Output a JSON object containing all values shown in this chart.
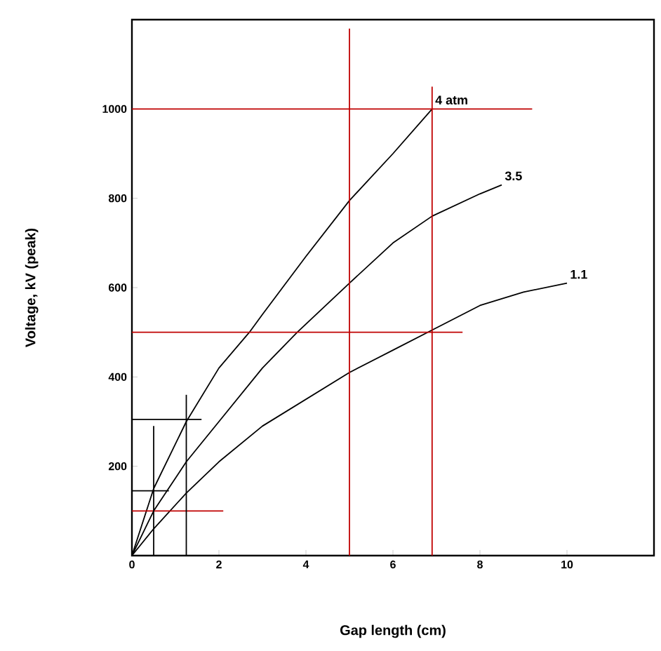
{
  "chart_data": {
    "type": "line",
    "xlabel": "Gap length (cm)",
    "ylabel": "Voltage, kV (peak)",
    "xlim": [
      0,
      12
    ],
    "ylim": [
      0,
      1200
    ],
    "xticks": [
      0,
      2,
      4,
      6,
      8,
      10
    ],
    "yticks": [
      200,
      400,
      600,
      800,
      1000
    ],
    "grid": false,
    "legend": false,
    "marker": "none",
    "line_style": "solid",
    "series": [
      {
        "name": "4 atm",
        "color": "#000000",
        "x": [
          0,
          0.5,
          1.25,
          2,
          2.7,
          3,
          4,
          5,
          6,
          6.9
        ],
        "values": [
          0,
          150,
          300,
          420,
          500,
          540,
          670,
          795,
          900,
          1000
        ]
      },
      {
        "name": "3.5",
        "color": "#000000",
        "x": [
          0,
          0.5,
          1.25,
          2,
          3,
          3.8,
          5,
          6,
          6.9,
          8,
          8.5
        ],
        "values": [
          0,
          100,
          210,
          300,
          420,
          500,
          610,
          700,
          760,
          810,
          830
        ]
      },
      {
        "name": "1.1",
        "color": "#000000",
        "x": [
          0,
          0.5,
          1.25,
          2,
          3,
          4,
          5,
          6,
          6.9,
          8,
          9,
          10
        ],
        "values": [
          0,
          60,
          140,
          210,
          290,
          350,
          410,
          460,
          505,
          560,
          590,
          610
        ]
      },
      {
        "color": "#c00000",
        "x": [
          5,
          5
        ],
        "values": [
          0,
          1180
        ]
      },
      {
        "color": "#c00000",
        "x": [
          6.9,
          6.9
        ],
        "values": [
          0,
          1050
        ]
      },
      {
        "color": "#c00000",
        "x": [
          0,
          9.2
        ],
        "values": [
          1000,
          1000
        ]
      },
      {
        "color": "#c00000",
        "x": [
          0,
          7.6
        ],
        "values": [
          500,
          500
        ]
      },
      {
        "color": "#c00000",
        "x": [
          0,
          2.1
        ],
        "values": [
          100,
          100
        ]
      },
      {
        "color": "#000000",
        "x": [
          0.5,
          0.5
        ],
        "values": [
          0,
          290
        ]
      },
      {
        "color": "#000000",
        "x": [
          1.25,
          1.25
        ],
        "values": [
          0,
          360
        ]
      },
      {
        "color": "#000000",
        "x": [
          0,
          1.6
        ],
        "values": [
          305,
          305
        ]
      },
      {
        "color": "#000000",
        "x": [
          0,
          0.85
        ],
        "values": [
          145,
          145
        ]
      }
    ]
  }
}
